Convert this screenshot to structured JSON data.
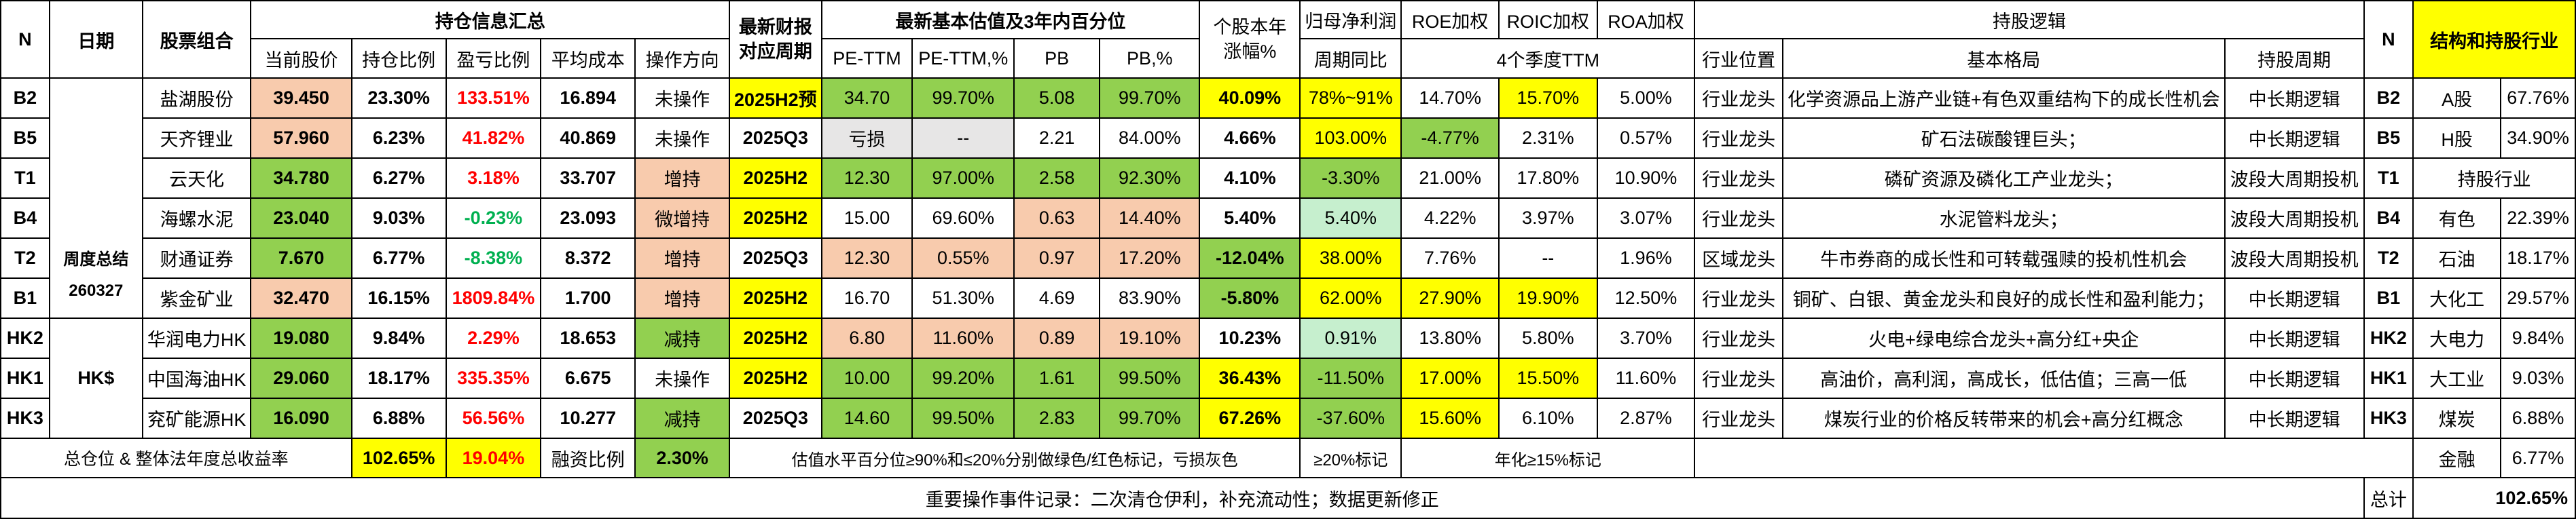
{
  "header": {
    "n": "N",
    "date": "日期",
    "portfolio": "股票组合",
    "holding_summary": "持仓信息汇总",
    "report_period": "最新财报对应周期",
    "valuation": "最新基本估值及3年内百分位",
    "ytd_change": "个股本年涨幅%",
    "net_profit": "归母净利润",
    "roe": "ROE加权",
    "roic": "ROIC加权",
    "roa": "ROA加权",
    "logic": "持股逻辑",
    "n_right": "N",
    "structure": "结构和持股行业",
    "current_price": "当前股价",
    "position_ratio": "持仓比例",
    "pnl_ratio": "盈亏比例",
    "avg_cost": "平均成本",
    "operation": "操作方向",
    "pe_ttm": "PE-TTM",
    "pe_ttm_pct": "PE-TTM,%",
    "pb": "PB",
    "pb_pct": "PB,%",
    "period_yoy": "周期同比",
    "ttm4": "4个季度TTM",
    "industry_position": "行业位置",
    "fundamentals": "基本格局",
    "holding_cycle": "持股周期"
  },
  "week_summary": "周度总结",
  "week_date": "260327",
  "hk_label": "HK$",
  "rows": [
    {
      "id": "B2",
      "name": "盐湖股份",
      "price": "39.450",
      "position": "23.30%",
      "pnl": "133.51%",
      "cost": "16.894",
      "op": "未操作",
      "period": "2025H2预",
      "pe": "34.70",
      "pe_pct": "99.70%",
      "pb": "5.08",
      "pb_pct": "99.70%",
      "ytd": "40.09%",
      "yoy": "78%~91%",
      "roe": "14.70%",
      "roic": "15.70%",
      "roa": "5.00%",
      "position_ind": "行业龙头",
      "logic": "化学资源品上游产业链+有色双重结构下的成长性机会",
      "cycle": "中长期逻辑",
      "rid": "B2",
      "rname": "A股",
      "rval": "67.76%"
    },
    {
      "id": "B5",
      "name": "天齐锂业",
      "price": "57.960",
      "position": "6.23%",
      "pnl": "41.82%",
      "cost": "40.869",
      "op": "未操作",
      "period": "2025Q3",
      "pe": "亏损",
      "pe_pct": "--",
      "pb": "2.21",
      "pb_pct": "84.00%",
      "ytd": "4.66%",
      "yoy": "103.00%",
      "roe": "-4.77%",
      "roic": "2.31%",
      "roa": "0.57%",
      "position_ind": "行业龙头",
      "logic": "矿石法碳酸锂巨头；",
      "cycle": "中长期逻辑",
      "rid": "B5",
      "rname": "H股",
      "rval": "34.90%"
    },
    {
      "id": "T1",
      "name": "云天化",
      "price": "34.780",
      "position": "6.27%",
      "pnl": "3.18%",
      "cost": "33.707",
      "op": "增持",
      "period": "2025H2",
      "pe": "12.30",
      "pe_pct": "97.00%",
      "pb": "2.58",
      "pb_pct": "92.30%",
      "ytd": "4.10%",
      "yoy": "-3.30%",
      "roe": "21.00%",
      "roic": "17.80%",
      "roa": "10.90%",
      "position_ind": "行业龙头",
      "logic": "磷矿资源及磷化工产业龙头；",
      "cycle": "波段大周期投机",
      "rid": "T1",
      "rname": "持股行业",
      "rval": ""
    },
    {
      "id": "B4",
      "name": "海螺水泥",
      "price": "23.040",
      "position": "9.03%",
      "pnl": "-0.23%",
      "cost": "23.093",
      "op": "微增持",
      "period": "2025H2",
      "pe": "15.00",
      "pe_pct": "69.60%",
      "pb": "0.63",
      "pb_pct": "14.40%",
      "ytd": "5.40%",
      "yoy": "5.40%",
      "roe": "4.22%",
      "roic": "3.97%",
      "roa": "3.07%",
      "position_ind": "行业龙头",
      "logic": "水泥管料龙头；",
      "cycle": "波段大周期投机",
      "rid": "B4",
      "rname": "有色",
      "rval": "22.39%"
    },
    {
      "id": "T2",
      "name": "财通证券",
      "price": "7.670",
      "position": "6.77%",
      "pnl": "-8.38%",
      "cost": "8.372",
      "op": "增持",
      "period": "2025Q3",
      "pe": "12.30",
      "pe_pct": "0.55%",
      "pb": "0.97",
      "pb_pct": "17.20%",
      "ytd": "-12.04%",
      "yoy": "38.00%",
      "roe": "7.76%",
      "roic": "--",
      "roa": "1.96%",
      "position_ind": "区域龙头",
      "logic": "牛市券商的成长性和可转载强赎的投机性机会",
      "cycle": "波段大周期投机",
      "rid": "T2",
      "rname": "石油",
      "rval": "18.17%"
    },
    {
      "id": "B1",
      "name": "紫金矿业",
      "price": "32.470",
      "position": "16.15%",
      "pnl": "1809.84%",
      "cost": "1.700",
      "op": "增持",
      "period": "2025H2",
      "pe": "16.70",
      "pe_pct": "51.30%",
      "pb": "4.69",
      "pb_pct": "83.90%",
      "ytd": "-5.80%",
      "yoy": "62.00%",
      "roe": "27.90%",
      "roic": "19.90%",
      "roa": "12.50%",
      "position_ind": "行业龙头",
      "logic": "铜矿、白银、黄金龙头和良好的成长性和盈利能力；",
      "cycle": "中长期逻辑",
      "rid": "B1",
      "rname": "大化工",
      "rval": "29.57%"
    },
    {
      "id": "HK2",
      "name": "华润电力HK",
      "price": "19.080",
      "position": "9.84%",
      "pnl": "2.29%",
      "cost": "18.653",
      "op": "减持",
      "period": "2025H2",
      "pe": "6.80",
      "pe_pct": "11.60%",
      "pb": "0.89",
      "pb_pct": "19.10%",
      "ytd": "10.23%",
      "yoy": "0.91%",
      "roe": "13.80%",
      "roic": "5.80%",
      "roa": "3.70%",
      "position_ind": "行业龙头",
      "logic": "火电+绿电综合龙头+高分红+央企",
      "cycle": "中长期逻辑",
      "rid": "HK2",
      "rname": "大电力",
      "rval": "9.84%"
    },
    {
      "id": "HK1",
      "name": "中国海油HK",
      "price": "29.060",
      "position": "18.17%",
      "pnl": "335.35%",
      "cost": "6.675",
      "op": "未操作",
      "period": "2025H2",
      "pe": "10.00",
      "pe_pct": "99.20%",
      "pb": "1.61",
      "pb_pct": "99.50%",
      "ytd": "36.43%",
      "yoy": "-11.50%",
      "roe": "17.00%",
      "roic": "15.50%",
      "roa": "11.60%",
      "position_ind": "行业龙头",
      "logic": "高油价，高利润，高成长，低估值；三高一低",
      "cycle": "中长期逻辑",
      "rid": "HK1",
      "rname": "大工业",
      "rval": "9.03%"
    },
    {
      "id": "HK3",
      "name": "兖矿能源HK",
      "price": "16.090",
      "position": "6.88%",
      "pnl": "56.56%",
      "cost": "10.277",
      "op": "减持",
      "period": "2025Q3",
      "pe": "14.60",
      "pe_pct": "99.50%",
      "pb": "2.83",
      "pb_pct": "99.70%",
      "ytd": "67.26%",
      "yoy": "-37.60%",
      "roe": "15.60%",
      "roic": "6.10%",
      "roa": "2.87%",
      "position_ind": "行业龙头",
      "logic": "煤炭行业的价格反转带来的机会+高分红概念",
      "cycle": "中长期逻辑",
      "rid": "HK3",
      "rname": "煤炭",
      "rval": "6.88%"
    }
  ],
  "totals": {
    "label": "总仓位 & 整体法年度总收益率",
    "total_position": "102.65%",
    "total_return": "19.04%",
    "margin_label": "融资比例",
    "margin_value": "2.30%",
    "valuation_note": "估值水平百分位≥90%和≤20%分别做绿色/红色标记，亏损灰色",
    "profit_note": "≥20%标记",
    "annual_note": "年化≥15%标记",
    "finance_name": "金融",
    "finance_value": "6.77%"
  },
  "footer": {
    "events": "重要操作事件记录：二次清仓伊利，补充流动性；数据更新修正",
    "total_label": "总计",
    "total_value": "102.65%"
  }
}
